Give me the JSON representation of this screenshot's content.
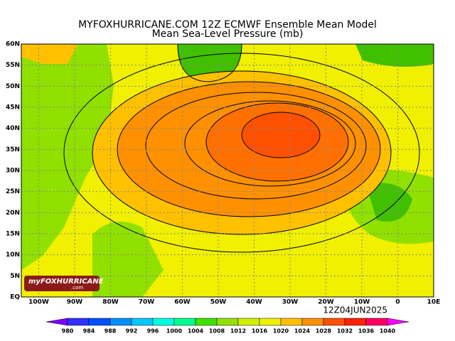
{
  "header": {
    "title": "MYFOXHURRICANE.COM 12Z ECMWF Ensemble Mean Model",
    "subtitle": "Mean Sea-Level Pressure (mb)"
  },
  "map": {
    "lat_labels": [
      "60N",
      "55N",
      "50N",
      "45N",
      "40N",
      "35N",
      "30N",
      "25N",
      "20N",
      "15N",
      "10N",
      "5N",
      "EQ"
    ],
    "lon_labels": [
      "100W",
      "90W",
      "80W",
      "70W",
      "60W",
      "50W",
      "40W",
      "30W",
      "20W",
      "10W",
      "0",
      "10E"
    ],
    "valid_time": "12Z04JUN2025",
    "logo": {
      "brand": "myFOXHURRICANE",
      "site": ".com"
    }
  },
  "colorbar": {
    "labels": [
      "980",
      "984",
      "988",
      "992",
      "996",
      "1000",
      "1004",
      "1008",
      "1012",
      "1016",
      "1020",
      "1024",
      "1028",
      "1032",
      "1036",
      "1040"
    ],
    "colors": [
      "#8000ff",
      "#3030ff",
      "#0050ff",
      "#0090ff",
      "#00c8ff",
      "#00ffe0",
      "#00ff90",
      "#40e000",
      "#90e000",
      "#d0f000",
      "#f0f000",
      "#ffc000",
      "#ff9000",
      "#ff5000",
      "#ff2000",
      "#ff0060",
      "#ff00ff"
    ]
  }
}
